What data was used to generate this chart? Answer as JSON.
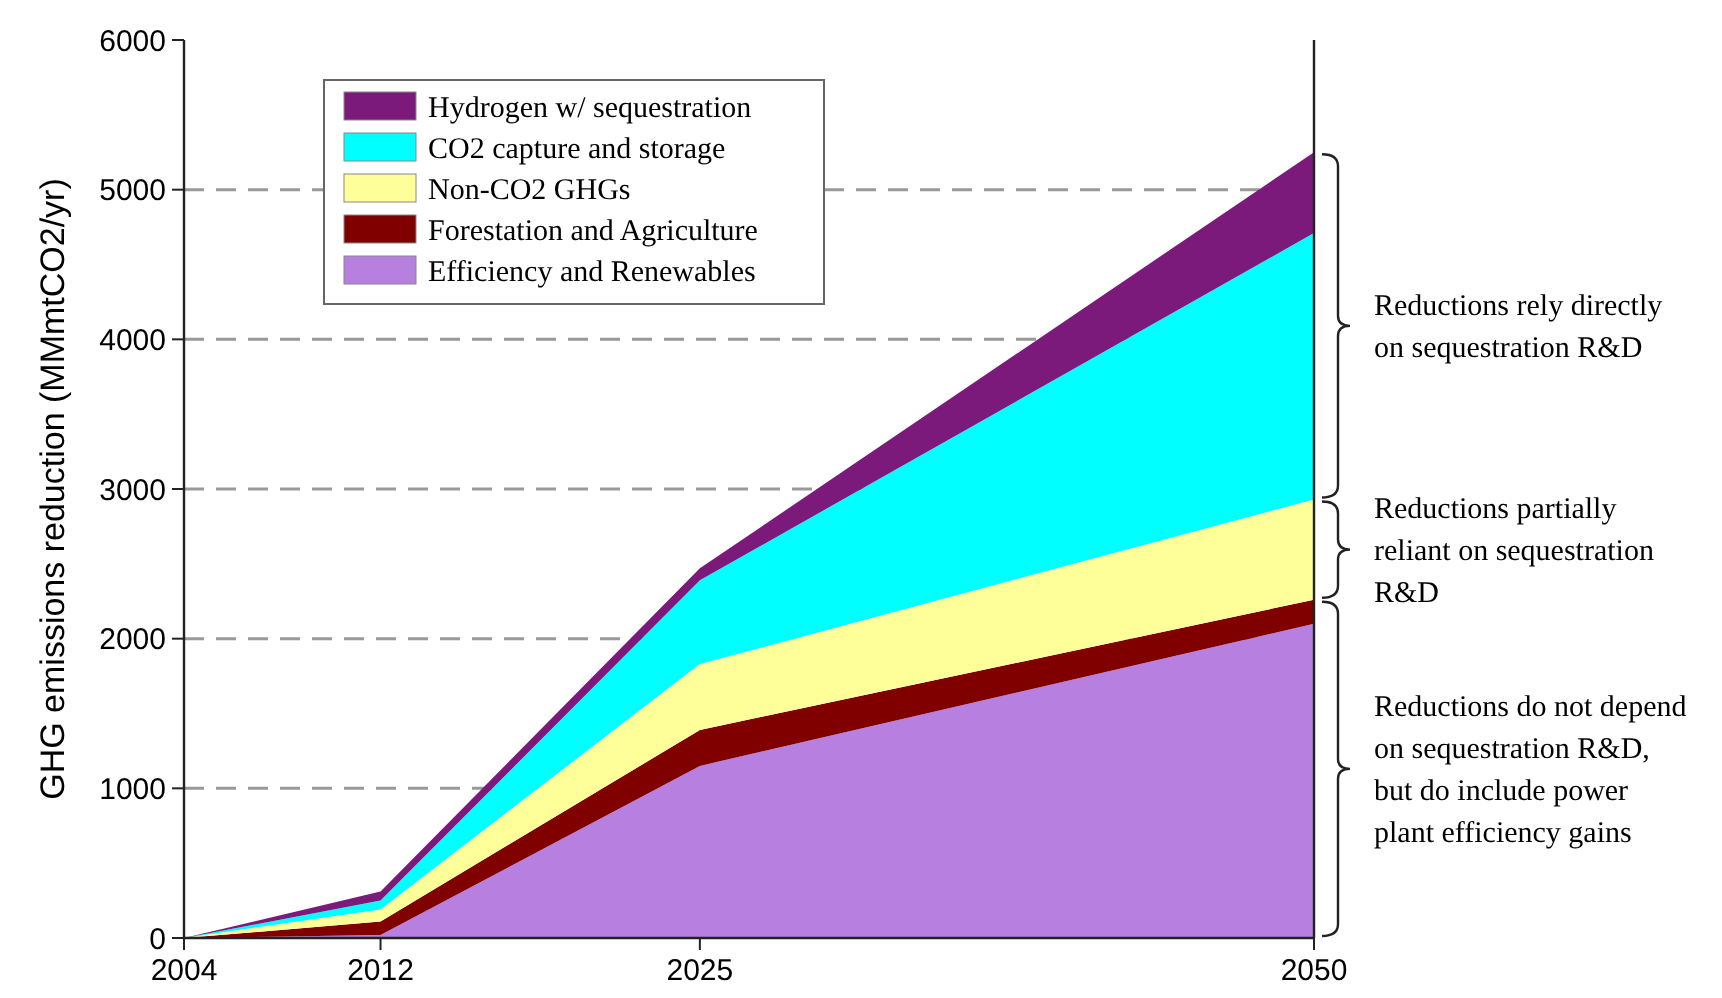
{
  "chart_data": {
    "type": "area",
    "stacked": true,
    "ylabel": "GHG emissions reduction (MMmtCO2/yr)",
    "x": [
      2004,
      2012,
      2025,
      2050
    ],
    "xlim": [
      2004,
      2050
    ],
    "xticks": [
      2004,
      2012,
      2025,
      2050
    ],
    "ylim": [
      0,
      6000
    ],
    "yticks": [
      0,
      1000,
      2000,
      3000,
      4000,
      5000,
      6000
    ],
    "grid": "y",
    "legend": "top left",
    "series": [
      {
        "name": "Efficiency and Renewables",
        "color": "#b77fe0",
        "values": [
          0,
          20,
          1150,
          2100
        ]
      },
      {
        "name": "Forestation and Agriculture",
        "color": "#800000",
        "values": [
          0,
          90,
          240,
          160
        ]
      },
      {
        "name": "Non-CO2 GHGs",
        "color": "#ffff99",
        "values": [
          0,
          80,
          440,
          670
        ]
      },
      {
        "name": "CO2 capture and storage",
        "color": "#00ffff",
        "values": [
          0,
          60,
          560,
          1780
        ]
      },
      {
        "name": "Hydrogen w/ sequestration",
        "color": "#7b1a7b",
        "values": [
          0,
          60,
          80,
          540
        ]
      }
    ],
    "annotations": [
      "Reductions rely directly on sequestration R&D",
      "Reductions partially reliant on sequestration R&D",
      "Reductions do not depend on sequestration R&D, but do include power plant efficiency gains"
    ]
  }
}
